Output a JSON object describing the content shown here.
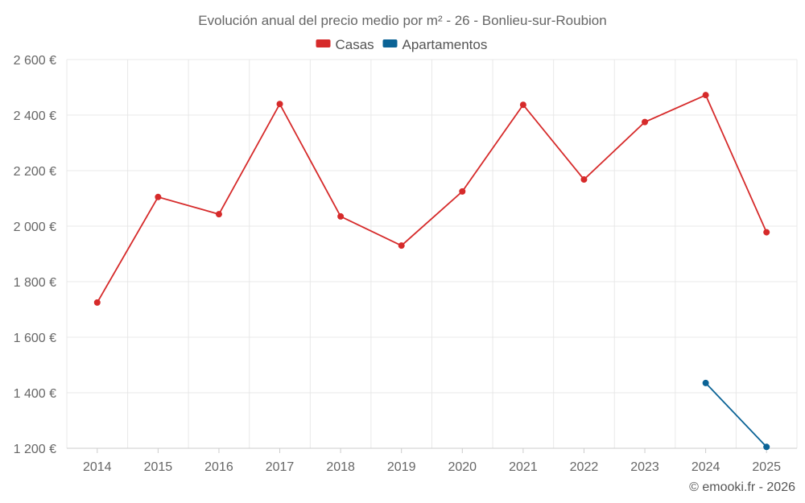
{
  "chart_data": {
    "type": "line",
    "title": "Evolución anual del precio medio por m² - 26 - Bonlieu-sur-Roubion",
    "categories": [
      "2014",
      "2015",
      "2016",
      "2017",
      "2018",
      "2019",
      "2020",
      "2021",
      "2022",
      "2023",
      "2024",
      "2025"
    ],
    "series": [
      {
        "name": "Casas",
        "color": "#d62a2a",
        "values": [
          1725,
          2105,
          2043,
          2440,
          2035,
          1930,
          2125,
          2437,
          2168,
          2375,
          2472,
          1978
        ]
      },
      {
        "name": "Apartamentos",
        "color": "#0b6396",
        "values": [
          null,
          null,
          null,
          null,
          null,
          null,
          null,
          null,
          null,
          null,
          1435,
          1205
        ]
      }
    ],
    "ylim": [
      1200,
      2600
    ],
    "yticks": [
      1200,
      1400,
      1600,
      1800,
      2000,
      2200,
      2400,
      2600
    ],
    "ytick_labels": [
      "1 200 €",
      "1 400 €",
      "1 600 €",
      "1 800 €",
      "2 000 €",
      "2 200 €",
      "2 400 €",
      "2 600 €"
    ],
    "xlabel": "",
    "ylabel": "",
    "legend_position": "top-center",
    "grid": true
  },
  "credit": "© emooki.fr - 2026"
}
